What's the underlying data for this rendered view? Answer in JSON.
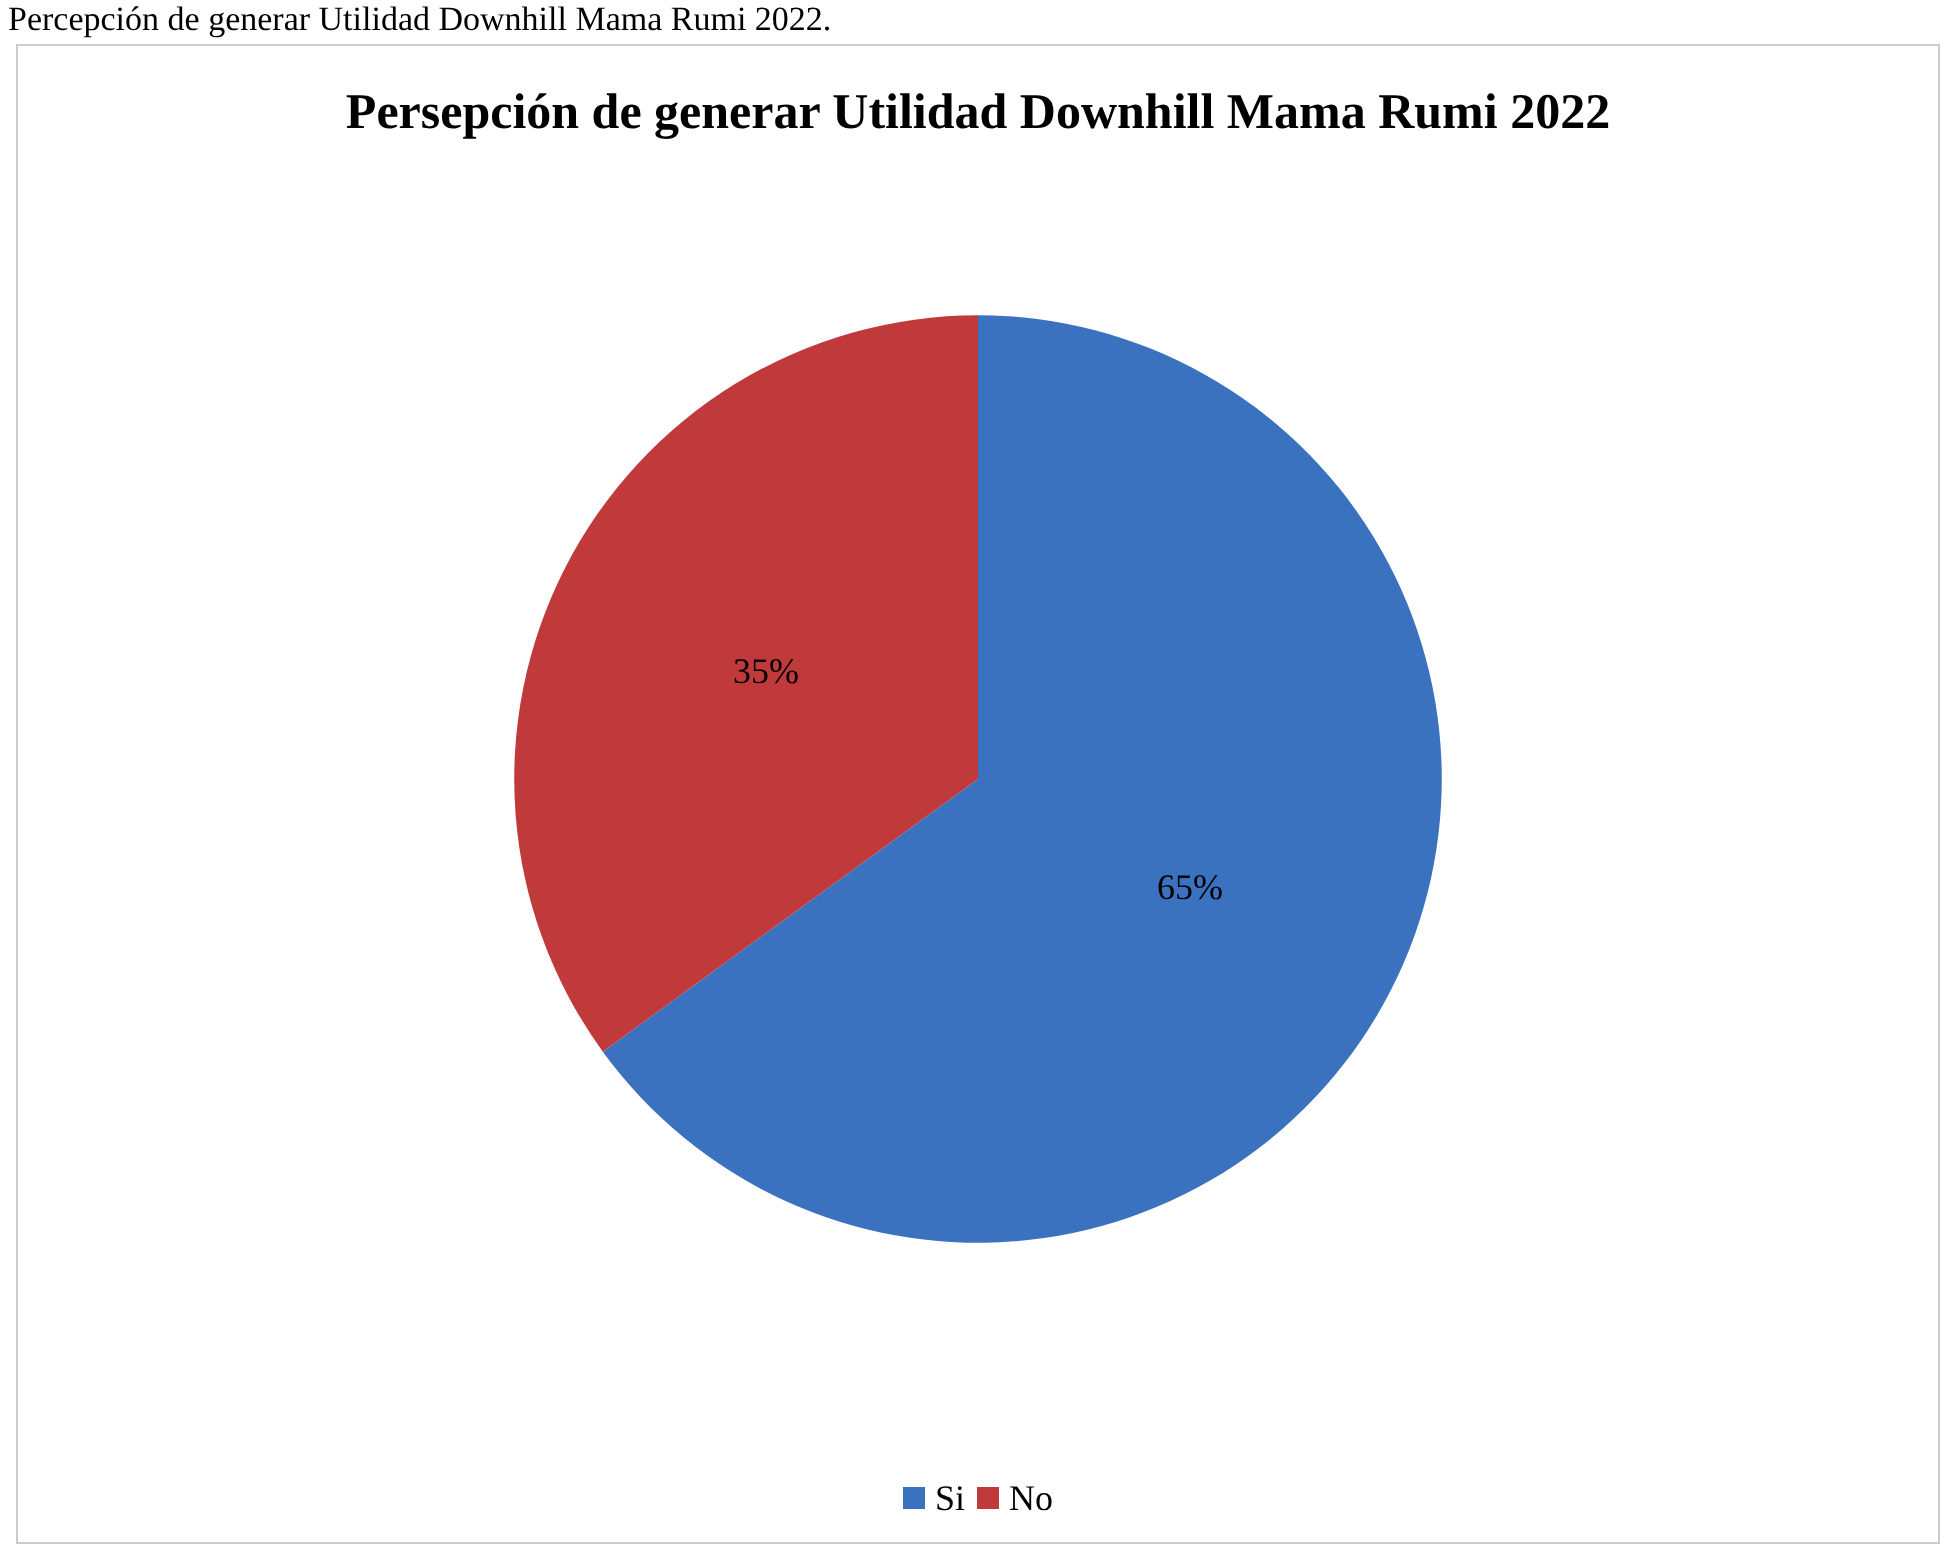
{
  "chart_data": {
    "type": "pie",
    "title": "Persepción de generar Utilidad Downhill Mama Rumi 2022",
    "annotations": [
      "Percepción de generar Utilidad Downhill Mama Rumi 2022."
    ],
    "categories": [
      "Si",
      "No"
    ],
    "values": [
      65,
      35
    ],
    "colors": [
      "#3a72c0",
      "#c0393b"
    ],
    "value_labels": [
      "65%",
      "35%"
    ],
    "legend": "bottom"
  }
}
